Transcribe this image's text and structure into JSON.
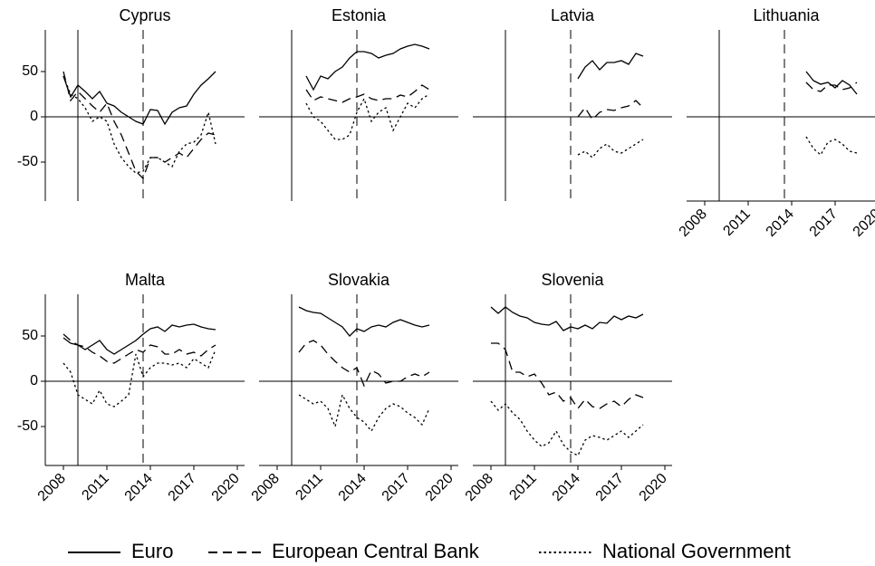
{
  "chart_data": [
    {
      "type": "line",
      "title": "Cyprus",
      "x": [
        2008,
        2008.5,
        2009,
        2009.5,
        2010,
        2010.5,
        2011,
        2011.5,
        2012,
        2012.5,
        2013,
        2013.5,
        2014,
        2014.5,
        2015,
        2015.5,
        2016,
        2016.5,
        2017,
        2017.5,
        2018,
        2018.5
      ],
      "series": [
        {
          "values": [
            45,
            22,
            35,
            28,
            20,
            28,
            15,
            12,
            5,
            0,
            -5,
            -8,
            8,
            7,
            -8,
            5,
            10,
            12,
            25,
            35,
            42,
            50
          ]
        },
        {
          "values": [
            50,
            18,
            28,
            20,
            12,
            5,
            15,
            -5,
            -20,
            -40,
            -60,
            -68,
            -45,
            -45,
            -50,
            -45,
            -40,
            -45,
            -35,
            -25,
            -18,
            -20
          ]
        },
        {
          "values": [
            45,
            25,
            20,
            10,
            -5,
            0,
            -5,
            -30,
            -45,
            -55,
            -62,
            -60,
            -45,
            -45,
            -50,
            -55,
            -38,
            -30,
            -28,
            -20,
            5,
            -30
          ]
        }
      ],
      "xlim": [
        2006.75,
        2020.5
      ],
      "ylim": [
        -93,
        96
      ],
      "yticks": [
        -50,
        0,
        50
      ],
      "vlines": [
        {
          "x": 2009,
          "dash": "solid"
        },
        {
          "x": 2013.5,
          "dash": "dashed"
        }
      ]
    },
    {
      "type": "line",
      "title": "Estonia",
      "x": [
        2008,
        2008.5,
        2009,
        2009.5,
        2010,
        2010.5,
        2011,
        2011.5,
        2012,
        2012.5,
        2013,
        2013.5,
        2014,
        2014.5,
        2015,
        2015.5,
        2016,
        2016.5,
        2017,
        2017.5,
        2018,
        2018.5
      ],
      "series": [
        {
          "values": [
            null,
            null,
            null,
            null,
            45,
            30,
            45,
            42,
            50,
            55,
            65,
            72,
            72,
            70,
            65,
            68,
            70,
            75,
            78,
            80,
            78,
            75
          ]
        },
        {
          "values": [
            null,
            null,
            null,
            null,
            30,
            18,
            22,
            20,
            18,
            16,
            20,
            22,
            25,
            20,
            18,
            20,
            20,
            24,
            22,
            28,
            35,
            30
          ]
        },
        {
          "values": [
            null,
            null,
            null,
            null,
            15,
            0,
            -5,
            -15,
            -25,
            -25,
            -20,
            5,
            20,
            -5,
            5,
            10,
            -15,
            0,
            15,
            10,
            20,
            25
          ]
        }
      ],
      "xlim": [
        2006.75,
        2020.5
      ],
      "ylim": [
        -93,
        96
      ],
      "vlines": [
        {
          "x": 2009,
          "dash": "solid"
        },
        {
          "x": 2013.5,
          "dash": "dashed"
        }
      ]
    },
    {
      "type": "line",
      "title": "Latvia",
      "x": [
        2008,
        2008.5,
        2009,
        2009.5,
        2010,
        2010.5,
        2011,
        2011.5,
        2012,
        2012.5,
        2013,
        2013.5,
        2014,
        2014.5,
        2015,
        2015.5,
        2016,
        2016.5,
        2017,
        2017.5,
        2018,
        2018.5
      ],
      "series": [
        {
          "values": [
            null,
            null,
            null,
            null,
            null,
            null,
            null,
            null,
            null,
            null,
            null,
            null,
            42,
            55,
            62,
            52,
            60,
            60,
            62,
            58,
            70,
            67
          ]
        },
        {
          "values": [
            null,
            null,
            null,
            null,
            null,
            null,
            null,
            null,
            null,
            null,
            null,
            null,
            0,
            10,
            -3,
            5,
            8,
            7,
            10,
            12,
            18,
            10
          ]
        },
        {
          "values": [
            null,
            null,
            null,
            null,
            null,
            null,
            null,
            null,
            null,
            null,
            null,
            null,
            -42,
            -38,
            -45,
            -35,
            -30,
            -38,
            -40,
            -35,
            -30,
            -25
          ]
        }
      ],
      "xlim": [
        2006.75,
        2020.5
      ],
      "ylim": [
        -93,
        96
      ],
      "vlines": [
        {
          "x": 2009,
          "dash": "solid"
        },
        {
          "x": 2013.5,
          "dash": "dashed"
        }
      ]
    },
    {
      "type": "line",
      "title": "Lithuania",
      "x": [
        2008,
        2008.5,
        2009,
        2009.5,
        2010,
        2010.5,
        2011,
        2011.5,
        2012,
        2012.5,
        2013,
        2013.5,
        2014,
        2014.5,
        2015,
        2015.5,
        2016,
        2016.5,
        2017,
        2017.5,
        2018,
        2018.5
      ],
      "series": [
        {
          "values": [
            null,
            null,
            null,
            null,
            null,
            null,
            null,
            null,
            null,
            null,
            null,
            null,
            null,
            null,
            50,
            40,
            36,
            38,
            32,
            40,
            35,
            25
          ]
        },
        {
          "values": [
            null,
            null,
            null,
            null,
            null,
            null,
            null,
            null,
            null,
            null,
            null,
            null,
            null,
            null,
            38,
            30,
            28,
            35,
            35,
            30,
            32,
            38
          ]
        },
        {
          "values": [
            null,
            null,
            null,
            null,
            null,
            null,
            null,
            null,
            null,
            null,
            null,
            null,
            null,
            null,
            -22,
            -35,
            -42,
            -28,
            -25,
            -30,
            -38,
            -40
          ]
        }
      ],
      "xlim": [
        2006.75,
        2020.5
      ],
      "ylim": [
        -93,
        96
      ],
      "xticks": [
        2008,
        2011,
        2014,
        2017,
        2020
      ],
      "vlines": [
        {
          "x": 2009,
          "dash": "solid"
        },
        {
          "x": 2013.5,
          "dash": "dashed"
        }
      ]
    },
    {
      "type": "line",
      "title": "Malta",
      "x": [
        2008,
        2008.5,
        2009,
        2009.5,
        2010,
        2010.5,
        2011,
        2011.5,
        2012,
        2012.5,
        2013,
        2013.5,
        2014,
        2014.5,
        2015,
        2015.5,
        2016,
        2016.5,
        2017,
        2017.5,
        2018,
        2018.5
      ],
      "series": [
        {
          "values": [
            48,
            42,
            40,
            35,
            40,
            45,
            35,
            30,
            35,
            40,
            45,
            52,
            58,
            60,
            55,
            62,
            60,
            62,
            63,
            60,
            58,
            57
          ]
        },
        {
          "values": [
            52,
            45,
            40,
            38,
            32,
            28,
            22,
            20,
            25,
            30,
            35,
            32,
            40,
            38,
            30,
            30,
            35,
            30,
            32,
            28,
            35,
            40
          ]
        },
        {
          "values": [
            20,
            10,
            -15,
            -20,
            -25,
            -10,
            -25,
            -28,
            -22,
            -15,
            30,
            5,
            15,
            20,
            20,
            18,
            20,
            15,
            25,
            20,
            15,
            35
          ]
        }
      ],
      "xlim": [
        2006.75,
        2020.5
      ],
      "ylim": [
        -93,
        96
      ],
      "yticks": [
        -50,
        0,
        50
      ],
      "xticks": [
        2008,
        2011,
        2014,
        2017,
        2020
      ],
      "vlines": [
        {
          "x": 2009,
          "dash": "solid"
        },
        {
          "x": 2013.5,
          "dash": "dashed"
        }
      ]
    },
    {
      "type": "line",
      "title": "Slovakia",
      "x": [
        2008,
        2008.5,
        2009,
        2009.5,
        2010,
        2010.5,
        2011,
        2011.5,
        2012,
        2012.5,
        2013,
        2013.5,
        2014,
        2014.5,
        2015,
        2015.5,
        2016,
        2016.5,
        2017,
        2017.5,
        2018,
        2018.5
      ],
      "series": [
        {
          "values": [
            null,
            null,
            null,
            82,
            78,
            76,
            75,
            70,
            65,
            60,
            50,
            58,
            55,
            60,
            62,
            60,
            65,
            68,
            65,
            62,
            60,
            62
          ]
        },
        {
          "values": [
            null,
            null,
            null,
            32,
            42,
            45,
            40,
            30,
            22,
            15,
            10,
            15,
            -5,
            12,
            8,
            -2,
            0,
            0,
            5,
            8,
            5,
            10
          ]
        },
        {
          "values": [
            null,
            null,
            null,
            -15,
            -20,
            -25,
            -22,
            -30,
            -50,
            -15,
            -30,
            -40,
            -45,
            -55,
            -40,
            -30,
            -25,
            -28,
            -35,
            -40,
            -48,
            -30
          ]
        }
      ],
      "xlim": [
        2006.75,
        2020.5
      ],
      "ylim": [
        -93,
        96
      ],
      "xticks": [
        2008,
        2011,
        2014,
        2017,
        2020
      ],
      "vlines": [
        {
          "x": 2009,
          "dash": "solid"
        },
        {
          "x": 2013.5,
          "dash": "dashed"
        }
      ]
    },
    {
      "type": "line",
      "title": "Slovenia",
      "x": [
        2008,
        2008.5,
        2009,
        2009.5,
        2010,
        2010.5,
        2011,
        2011.5,
        2012,
        2012.5,
        2013,
        2013.5,
        2014,
        2014.5,
        2015,
        2015.5,
        2016,
        2016.5,
        2017,
        2017.5,
        2018,
        2018.5
      ],
      "series": [
        {
          "values": [
            82,
            75,
            82,
            76,
            72,
            70,
            65,
            63,
            62,
            66,
            56,
            60,
            58,
            62,
            58,
            65,
            64,
            72,
            68,
            72,
            70,
            74
          ]
        },
        {
          "values": [
            42,
            42,
            35,
            10,
            10,
            5,
            8,
            -2,
            -15,
            -12,
            -22,
            -18,
            -30,
            -20,
            -28,
            -30,
            -25,
            -22,
            -28,
            -20,
            -15,
            -18
          ]
        },
        {
          "values": [
            -22,
            -32,
            -25,
            -35,
            -42,
            -55,
            -65,
            -72,
            -68,
            -55,
            -70,
            -78,
            -82,
            -65,
            -60,
            -62,
            -65,
            -60,
            -55,
            -62,
            -55,
            -48
          ]
        }
      ],
      "xlim": [
        2006.75,
        2020.5
      ],
      "ylim": [
        -93,
        96
      ],
      "xticks": [
        2008,
        2011,
        2014,
        2017,
        2020
      ],
      "vlines": [
        {
          "x": 2009,
          "dash": "solid"
        },
        {
          "x": 2013.5,
          "dash": "dashed"
        }
      ]
    }
  ],
  "legend": [
    {
      "name": "Euro",
      "dash": "solid",
      "color": "#000000"
    },
    {
      "name": "European Central Bank",
      "dash": "dashed",
      "color": "#000000"
    },
    {
      "name": "National Government",
      "dash": "dotted",
      "color": "#000000"
    }
  ]
}
